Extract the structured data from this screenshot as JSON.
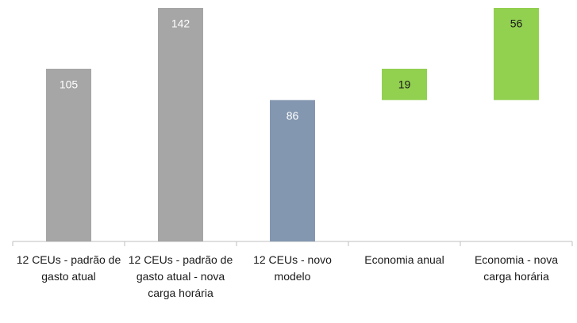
{
  "chart_data": {
    "type": "waterfall",
    "categories": [
      "12 CEUs - padrão de gasto atual",
      "12 CEUs - padrão de gasto atual - nova carga horária",
      "12 CEUs - novo modelo",
      "Economia anual",
      "Economia - nova carga horária"
    ],
    "values": [
      105,
      142,
      86,
      19,
      56
    ],
    "colors": [
      "#a6a6a6",
      "#a6a6a6",
      "#8497b0",
      "#92d050",
      "#92d050"
    ],
    "label_colors": [
      "#ffffff",
      "#ffffff",
      "#ffffff",
      "#1a1a1a",
      "#1a1a1a"
    ],
    "ylim": [
      0,
      142
    ]
  }
}
